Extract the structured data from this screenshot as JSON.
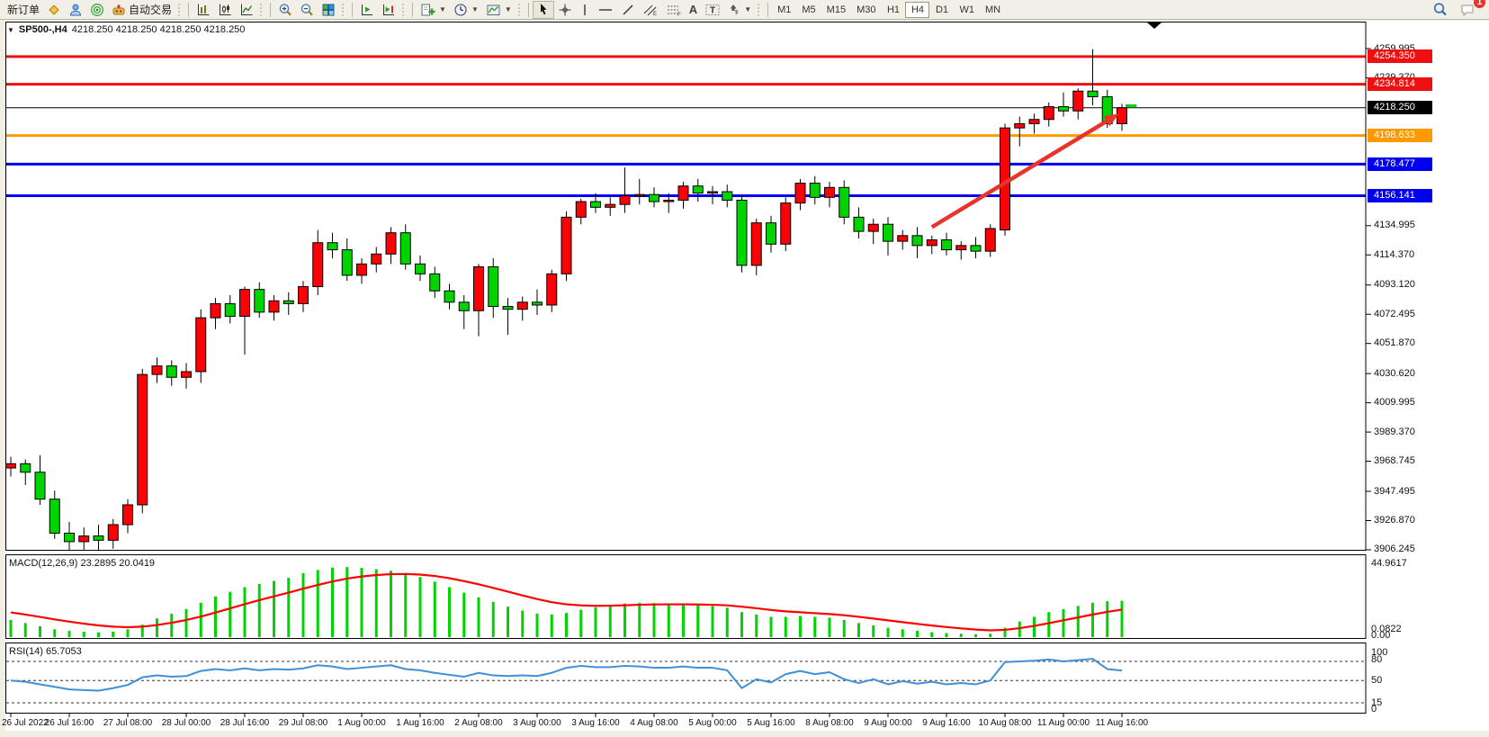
{
  "toolbar": {
    "new_order_label": "新订单",
    "auto_trading_label": "自动交易",
    "timeframes": [
      "M1",
      "M5",
      "M15",
      "M30",
      "H1",
      "H4",
      "D1",
      "W1",
      "MN"
    ],
    "active_timeframe": "H4",
    "notification_badge": "1"
  },
  "chart": {
    "title": "SP500-,H4",
    "ohlc_display": "4218.250 4218.250 4218.250 4218.250",
    "y_ticks": [
      "4259.995",
      "4239.370",
      "4134.995",
      "4114.370",
      "4093.120",
      "4072.495",
      "4051.870",
      "4030.620",
      "4009.995",
      "3989.370",
      "3968.745",
      "3947.495",
      "3926.870",
      "3906.245"
    ],
    "x_labels": [
      "26 Jul 2022",
      "26 Jul 16:00",
      "27 Jul 08:00",
      "28 Jul 00:00",
      "28 Jul 16:00",
      "29 Jul 08:00",
      "1 Aug 00:00",
      "1 Aug 16:00",
      "2 Aug 08:00",
      "3 Aug 00:00",
      "3 Aug 16:00",
      "4 Aug 08:00",
      "5 Aug 00:00",
      "5 Aug 16:00",
      "8 Aug 08:00",
      "9 Aug 00:00",
      "9 Aug 16:00",
      "10 Aug 08:00",
      "11 Aug 00:00",
      "11 Aug 16:00"
    ],
    "price_tags": [
      {
        "label": "4254.350",
        "price": 4254.35,
        "color": "#ee1010"
      },
      {
        "label": "4234.814",
        "price": 4234.814,
        "color": "#ee1010"
      },
      {
        "label": "4218.250",
        "price": 4218.25,
        "color": "#000000"
      },
      {
        "label": "4198.633",
        "price": 4198.633,
        "color": "#ff9900"
      },
      {
        "label": "4178.477",
        "price": 4178.477,
        "color": "#0000ee"
      },
      {
        "label": "4156.141",
        "price": 4156.141,
        "color": "#0000ee"
      }
    ]
  },
  "macd": {
    "label": "MACD(12,26,9) 23.2895 20.0419",
    "axis_top": "44.9617",
    "axis_bottom_a": "0.0822",
    "axis_bottom_b": "0.00"
  },
  "rsi": {
    "label": "RSI(14) 65.7053",
    "axis": [
      "100",
      "80",
      "50",
      "15",
      "0"
    ],
    "levels": [
      80,
      50,
      15
    ]
  },
  "chart_data": {
    "type": "candlestick",
    "symbol": "SP500-",
    "timeframe": "H4",
    "bull_color": "#fb0207",
    "bear_color": "#00d400",
    "price_line_values": [
      4254.35,
      4234.814,
      4218.25,
      4198.633,
      4178.477,
      4156.141
    ],
    "candles": [
      [
        3964,
        3972,
        3958,
        3967
      ],
      [
        3967,
        3970,
        3952,
        3961
      ],
      [
        3961,
        3973,
        3938,
        3942
      ],
      [
        3942,
        3948,
        3914,
        3918
      ],
      [
        3918,
        3926,
        3906,
        3912
      ],
      [
        3912,
        3922,
        3906,
        3916
      ],
      [
        3916,
        3924,
        3906,
        3913
      ],
      [
        3913,
        3928,
        3907,
        3924
      ],
      [
        3924,
        3942,
        3918,
        3938
      ],
      [
        3938,
        4034,
        3932,
        4030
      ],
      [
        4030,
        4042,
        4024,
        4036
      ],
      [
        4036,
        4040,
        4022,
        4028
      ],
      [
        4028,
        4038,
        4020,
        4032
      ],
      [
        4032,
        4076,
        4024,
        4070
      ],
      [
        4070,
        4084,
        4062,
        4080
      ],
      [
        4080,
        4086,
        4066,
        4071
      ],
      [
        4071,
        4092,
        4044,
        4090
      ],
      [
        4090,
        4095,
        4070,
        4074
      ],
      [
        4074,
        4086,
        4068,
        4082
      ],
      [
        4082,
        4088,
        4072,
        4080
      ],
      [
        4080,
        4096,
        4074,
        4092
      ],
      [
        4092,
        4132,
        4086,
        4123
      ],
      [
        4123,
        4130,
        4112,
        4118
      ],
      [
        4118,
        4126,
        4096,
        4100
      ],
      [
        4100,
        4112,
        4094,
        4108
      ],
      [
        4108,
        4120,
        4102,
        4115
      ],
      [
        4115,
        4134,
        4108,
        4130
      ],
      [
        4130,
        4136,
        4104,
        4108
      ],
      [
        4108,
        4114,
        4096,
        4101
      ],
      [
        4101,
        4106,
        4084,
        4089
      ],
      [
        4089,
        4094,
        4076,
        4081
      ],
      [
        4081,
        4086,
        4062,
        4075
      ],
      [
        4075,
        4108,
        4057,
        4106
      ],
      [
        4106,
        4112,
        4070,
        4078
      ],
      [
        4078,
        4084,
        4058,
        4076
      ],
      [
        4076,
        4085,
        4068,
        4081
      ],
      [
        4081,
        4090,
        4072,
        4079
      ],
      [
        4079,
        4104,
        4074,
        4101
      ],
      [
        4101,
        4145,
        4096,
        4141
      ],
      [
        4141,
        4154,
        4136,
        4152
      ],
      [
        4152,
        4158,
        4144,
        4148
      ],
      [
        4148,
        4155,
        4142,
        4150
      ],
      [
        4150,
        4176,
        4144,
        4156
      ],
      [
        4156,
        4168,
        4150,
        4157
      ],
      [
        4157,
        4162,
        4148,
        4152
      ],
      [
        4152,
        4158,
        4144,
        4153
      ],
      [
        4153,
        4166,
        4147,
        4163
      ],
      [
        4163,
        4168,
        4152,
        4158
      ],
      [
        4158,
        4163,
        4150,
        4159
      ],
      [
        4159,
        4164,
        4148,
        4153
      ],
      [
        4153,
        4156,
        4102,
        4107
      ],
      [
        4107,
        4140,
        4100,
        4137
      ],
      [
        4137,
        4142,
        4116,
        4122
      ],
      [
        4122,
        4155,
        4117,
        4151
      ],
      [
        4151,
        4168,
        4146,
        4165
      ],
      [
        4165,
        4170,
        4150,
        4155
      ],
      [
        4155,
        4166,
        4148,
        4162
      ],
      [
        4162,
        4167,
        4136,
        4141
      ],
      [
        4141,
        4148,
        4126,
        4131
      ],
      [
        4131,
        4140,
        4122,
        4136
      ],
      [
        4136,
        4141,
        4114,
        4124
      ],
      [
        4124,
        4132,
        4118,
        4128
      ],
      [
        4128,
        4134,
        4112,
        4121
      ],
      [
        4121,
        4128,
        4115,
        4125
      ],
      [
        4125,
        4130,
        4114,
        4118
      ],
      [
        4118,
        4124,
        4111,
        4121
      ],
      [
        4121,
        4127,
        4112,
        4117
      ],
      [
        4117,
        4136,
        4113,
        4133
      ],
      [
        4132,
        4207,
        4128,
        4204
      ],
      [
        4204,
        4212,
        4191,
        4207
      ],
      [
        4207,
        4214,
        4200,
        4210
      ],
      [
        4210,
        4222,
        4205,
        4219
      ],
      [
        4219,
        4229,
        4212,
        4216
      ],
      [
        4216,
        4232,
        4210,
        4230
      ],
      [
        4230,
        4259.5,
        4220,
        4226
      ],
      [
        4226,
        4231,
        4204,
        4207
      ],
      [
        4207,
        4221,
        4202,
        4218.25
      ]
    ],
    "macd_histogram": [
      11,
      9,
      7,
      5,
      4,
      3.5,
      3,
      3.5,
      5,
      8,
      12,
      15,
      18,
      22,
      26,
      29,
      32,
      34,
      36,
      38,
      41,
      43,
      44.5,
      44.9,
      44.3,
      43.5,
      42.5,
      41,
      38.5,
      35.5,
      32,
      28.5,
      25.5,
      22.5,
      19.5,
      17,
      15,
      14.5,
      15.5,
      17.5,
      19,
      20.5,
      21.5,
      22,
      21.8,
      21.3,
      21,
      20.5,
      20,
      18.8,
      16,
      14.5,
      13,
      13,
      13.5,
      13,
      12.5,
      11,
      9,
      7.5,
      6,
      5,
      4,
      3.2,
      2.6,
      2.2,
      1.8,
      2.2,
      6,
      10,
      13,
      16,
      18,
      20,
      22,
      23,
      23.29
    ],
    "macd_current": 23.2895,
    "macd_signal_current": 20.0419,
    "macd_axis_max": 44.9617,
    "rsi_values": [
      50,
      48,
      44,
      40,
      36,
      35,
      34,
      38,
      43,
      55,
      58,
      56,
      57,
      65,
      68,
      66,
      69,
      66,
      68,
      67,
      69,
      74,
      72,
      68,
      70,
      72,
      74,
      68,
      66,
      62,
      59,
      56,
      62,
      58,
      57,
      58,
      57,
      62,
      70,
      73,
      71,
      71,
      73,
      72,
      70,
      70,
      72,
      70,
      70,
      66,
      38,
      52,
      47,
      60,
      65,
      60,
      63,
      52,
      46,
      52,
      44,
      49,
      45,
      48,
      44,
      46,
      44,
      50,
      79,
      80,
      81,
      83,
      80,
      82,
      84,
      68,
      65.7
    ],
    "rsi_current": 65.7053,
    "trend_arrow": {
      "from_index": 63,
      "from_price": 4134,
      "to_index": 75.8,
      "to_price": 4214,
      "color": "#e8342a"
    }
  }
}
